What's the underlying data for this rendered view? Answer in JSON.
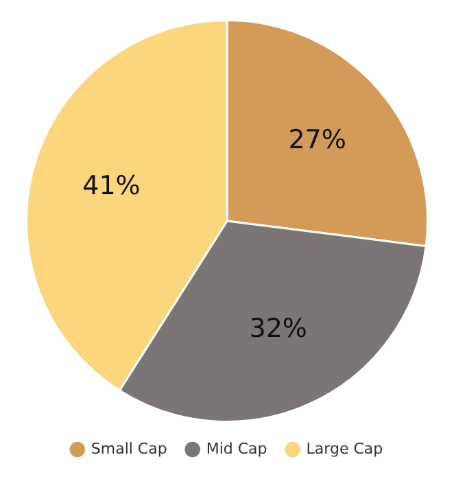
{
  "chart_data": {
    "type": "pie",
    "categories": [
      "Small Cap",
      "Mid Cap",
      "Large Cap"
    ],
    "values": [
      27,
      32,
      41
    ],
    "colors": [
      "#d39b57",
      "#7b7675",
      "#fcd67c"
    ],
    "value_labels": [
      "27%",
      "32%",
      "41%"
    ],
    "legend": "bottom"
  }
}
